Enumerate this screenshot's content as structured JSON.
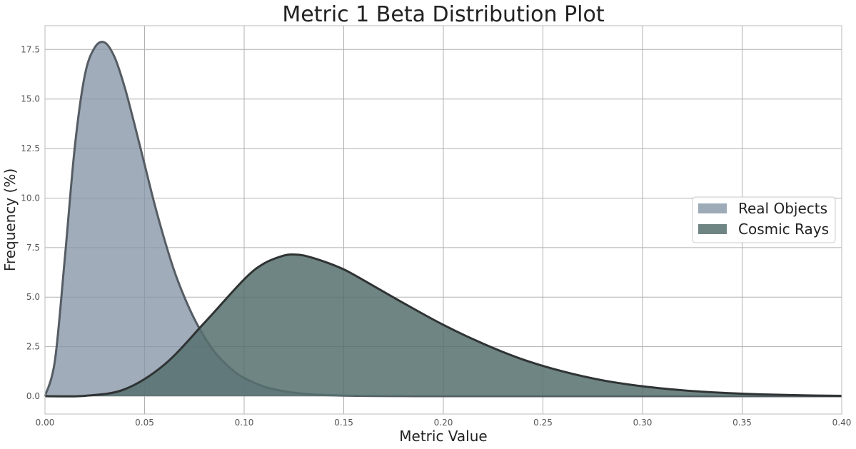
{
  "chart_data": {
    "type": "area",
    "title": "Metric 1 Beta Distribution Plot",
    "xlabel": "Metric Value",
    "ylabel": "Frequency (%)",
    "xlim": [
      0.0,
      0.4
    ],
    "ylim": [
      -0.9,
      18.7
    ],
    "xticks": [
      0.0,
      0.05,
      0.1,
      0.15,
      0.2,
      0.25,
      0.3,
      0.35,
      0.4
    ],
    "xtick_labels": [
      "0.00",
      "0.05",
      "0.10",
      "0.15",
      "0.20",
      "0.25",
      "0.30",
      "0.35",
      "0.40"
    ],
    "yticks": [
      0.0,
      2.5,
      5.0,
      7.5,
      10.0,
      12.5,
      15.0,
      17.5
    ],
    "ytick_labels": [
      "0.0",
      "2.5",
      "5.0",
      "7.5",
      "10.0",
      "12.5",
      "15.0",
      "17.5"
    ],
    "grid": true,
    "legend_position": "center-right",
    "series": [
      {
        "name": "Real Objects",
        "fill_color": "#8595a6",
        "line_color": "#555c63",
        "x": [
          0.0,
          0.005,
          0.01,
          0.015,
          0.02,
          0.025,
          0.03,
          0.035,
          0.04,
          0.045,
          0.05,
          0.055,
          0.06,
          0.065,
          0.07,
          0.075,
          0.08,
          0.085,
          0.09,
          0.095,
          0.1,
          0.11,
          0.12,
          0.13,
          0.14,
          0.15,
          0.16,
          0.18,
          0.2,
          0.25,
          0.3,
          0.35,
          0.4
        ],
        "y": [
          0.0,
          1.8,
          7.0,
          12.6,
          16.2,
          17.6,
          17.85,
          17.1,
          15.6,
          13.7,
          11.7,
          9.7,
          7.9,
          6.3,
          5.0,
          3.9,
          3.0,
          2.25,
          1.7,
          1.25,
          0.92,
          0.48,
          0.25,
          0.12,
          0.06,
          0.03,
          0.015,
          0.004,
          0.001,
          0.0,
          0.0,
          0.0,
          0.0
        ]
      },
      {
        "name": "Cosmic Rays",
        "fill_color": "#56706f",
        "line_color": "#2f3333",
        "x": [
          0.0,
          0.02,
          0.04,
          0.06,
          0.08,
          0.1,
          0.11,
          0.12,
          0.125,
          0.13,
          0.14,
          0.15,
          0.16,
          0.18,
          0.2,
          0.22,
          0.24,
          0.26,
          0.28,
          0.3,
          0.32,
          0.34,
          0.36,
          0.38,
          0.4
        ],
        "y": [
          0.0,
          0.02,
          0.35,
          1.6,
          3.7,
          5.9,
          6.7,
          7.1,
          7.15,
          7.1,
          6.8,
          6.4,
          5.85,
          4.7,
          3.6,
          2.65,
          1.85,
          1.25,
          0.8,
          0.5,
          0.3,
          0.17,
          0.09,
          0.045,
          0.02
        ]
      }
    ]
  }
}
